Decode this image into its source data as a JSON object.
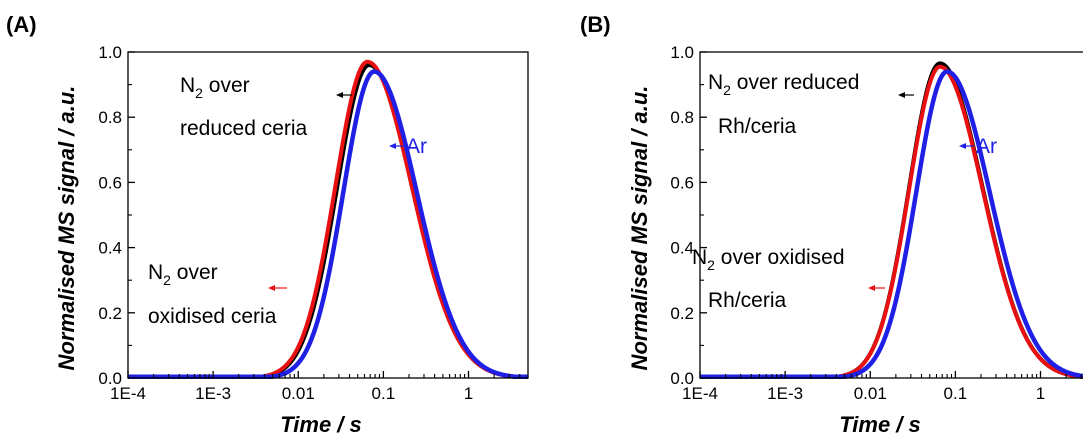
{
  "colors": {
    "n2_reduced": "#000000",
    "n2_oxidised": "#e81010",
    "ar": "#1f1fe6"
  },
  "chart_data": [
    {
      "type": "line",
      "panel_label": "(A)",
      "xlabel_main": "Time",
      "xlabel_unit": " / s",
      "ylabel_main": "Normalised MS signal",
      "ylabel_unit": " / a.u.",
      "xscale": "log",
      "xlim": [
        0.0001,
        5
      ],
      "ylim": [
        0,
        1.0
      ],
      "x_ticks": [
        {
          "value": 0.0001,
          "label": "1E-4"
        },
        {
          "value": 0.001,
          "label": "1E-3"
        },
        {
          "value": 0.01,
          "label": "0.01"
        },
        {
          "value": 0.1,
          "label": "0.1"
        },
        {
          "value": 1,
          "label": "1"
        }
      ],
      "y_ticks": [
        {
          "value": 0.0,
          "label": "0.0"
        },
        {
          "value": 0.2,
          "label": "0.2"
        },
        {
          "value": 0.4,
          "label": "0.4"
        },
        {
          "value": 0.6,
          "label": "0.6"
        },
        {
          "value": 0.8,
          "label": "0.8"
        },
        {
          "value": 1.0,
          "label": "1.0"
        }
      ],
      "series": [
        {
          "key": "n2_reduced",
          "color_key": "n2_reduced",
          "peak_x": 0.068,
          "peak_y": 0.96,
          "width": 0.52
        },
        {
          "key": "n2_oxidised",
          "color_key": "n2_oxidised",
          "peak_x": 0.065,
          "peak_y": 0.97,
          "width": 0.52
        },
        {
          "key": "ar",
          "color_key": "ar",
          "peak_x": 0.078,
          "peak_y": 0.94,
          "width": 0.5
        }
      ],
      "annotations": {
        "n2_reduced": {
          "prefix": "N",
          "sub": "2",
          "rest": " over",
          "line2": "reduced ceria"
        },
        "ar": {
          "text": "Ar"
        },
        "n2_oxidised": {
          "prefix": "N",
          "sub": "2",
          "rest": " over",
          "line2": "oxidised ceria"
        }
      }
    },
    {
      "type": "line",
      "panel_label": "(B)",
      "xlabel_main": "Time",
      "xlabel_unit": " / s",
      "ylabel_main": "Normalised MS signal",
      "ylabel_unit": " / a.u.",
      "xscale": "log",
      "xlim": [
        0.0001,
        5
      ],
      "ylim": [
        0,
        1.0
      ],
      "x_ticks": [
        {
          "value": 0.0001,
          "label": "1E-4"
        },
        {
          "value": 0.001,
          "label": "1E-3"
        },
        {
          "value": 0.01,
          "label": "0.01"
        },
        {
          "value": 0.1,
          "label": "0.1"
        },
        {
          "value": 1,
          "label": "1"
        }
      ],
      "y_ticks": [
        {
          "value": 0.0,
          "label": "0.0"
        },
        {
          "value": 0.2,
          "label": "0.2"
        },
        {
          "value": 0.4,
          "label": "0.4"
        },
        {
          "value": 0.6,
          "label": "0.6"
        },
        {
          "value": 0.8,
          "label": "0.8"
        },
        {
          "value": 1.0,
          "label": "1.0"
        }
      ],
      "series": [
        {
          "key": "n2_reduced",
          "color_key": "n2_reduced",
          "peak_x": 0.066,
          "peak_y": 0.965,
          "width": 0.5
        },
        {
          "key": "n2_oxidised",
          "color_key": "n2_oxidised",
          "peak_x": 0.066,
          "peak_y": 0.955,
          "width": 0.5
        },
        {
          "key": "ar",
          "color_key": "ar",
          "peak_x": 0.08,
          "peak_y": 0.94,
          "width": 0.5
        }
      ],
      "annotations": {
        "n2_reduced": {
          "prefix": "N",
          "sub": "2",
          "rest": " over reduced",
          "line2": "Rh/ceria"
        },
        "ar": {
          "text": "Ar"
        },
        "n2_oxidised": {
          "prefix": "N",
          "sub": "2",
          "rest": " over oxidised",
          "line2": "Rh/ceria"
        }
      }
    }
  ]
}
